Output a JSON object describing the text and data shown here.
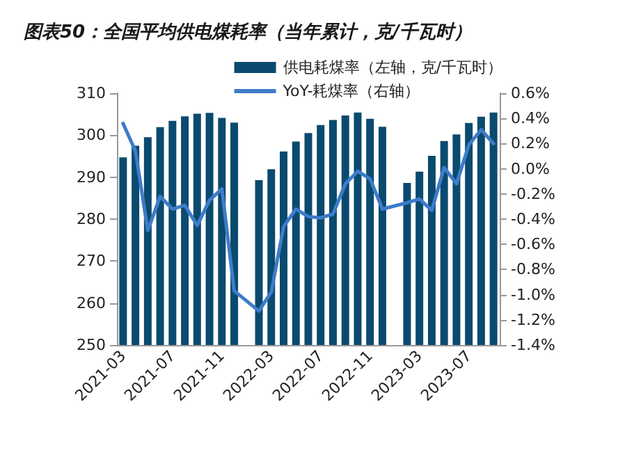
{
  "chart_data": {
    "type": "bar",
    "title": "图表50：全国平均供电煤耗率（当年累计，克/千瓦时）",
    "categories": [
      "2021-03",
      null,
      null,
      null,
      "2021-07",
      null,
      null,
      null,
      "2021-11",
      null,
      null,
      null,
      "2022-03",
      null,
      null,
      null,
      "2022-07",
      null,
      null,
      null,
      "2022-11",
      null,
      null,
      null,
      "2023-03",
      null,
      null,
      null,
      "2023-07",
      null,
      null
    ],
    "series": [
      {
        "name": "供电耗煤率（左轴，克/千瓦时）",
        "color": "#0b4a6f",
        "values": [
          294.7,
          297.5,
          299.5,
          301.9,
          303.4,
          304.5,
          305.1,
          305.3,
          304.1,
          303.0,
          null,
          289.3,
          291.9,
          296.1,
          298.5,
          300.5,
          302.4,
          303.6,
          304.7,
          305.4,
          303.9,
          302.0,
          null,
          288.6,
          291.3,
          295.1,
          298.6,
          300.2,
          302.9,
          304.4,
          305.4
        ]
      },
      {
        "name": "YoY-耗煤率（右轴）",
        "type": "line",
        "axis": "y2",
        "color": "#3d7cc9",
        "marker": "none",
        "line_style": "solid",
        "values": [
          0.36,
          0.14,
          -0.49,
          -0.22,
          -0.32,
          -0.29,
          -0.45,
          -0.25,
          -0.16,
          -0.97,
          null,
          -1.13,
          -0.98,
          -0.46,
          -0.32,
          -0.38,
          -0.39,
          -0.36,
          -0.12,
          -0.02,
          -0.08,
          -0.32,
          null,
          -0.27,
          -0.24,
          -0.33,
          0.01,
          -0.12,
          0.19,
          0.31,
          0.2
        ]
      }
    ],
    "ylim": [
      250,
      310
    ],
    "yticks": [
      250,
      260,
      270,
      280,
      290,
      300,
      310
    ],
    "y2lim": [
      -1.4,
      0.6
    ],
    "y2ticks": [
      {
        "value": -1.4,
        "label": "-1.4%"
      },
      {
        "value": -1.2,
        "label": "-1.2%"
      },
      {
        "value": -1.0,
        "label": "-1.0%"
      },
      {
        "value": -0.8,
        "label": "-0.8%"
      },
      {
        "value": -0.6,
        "label": "-0.6%"
      },
      {
        "value": -0.4,
        "label": "-0.4%"
      },
      {
        "value": -0.2,
        "label": "-0.2%"
      },
      {
        "value": 0,
        "label": "0.0%"
      },
      {
        "value": 0.2,
        "label": "0.2%"
      },
      {
        "value": 0.4,
        "label": "0.4%"
      },
      {
        "value": 0.6,
        "label": "0.6%"
      }
    ],
    "grid": false,
    "legend": "top right"
  }
}
